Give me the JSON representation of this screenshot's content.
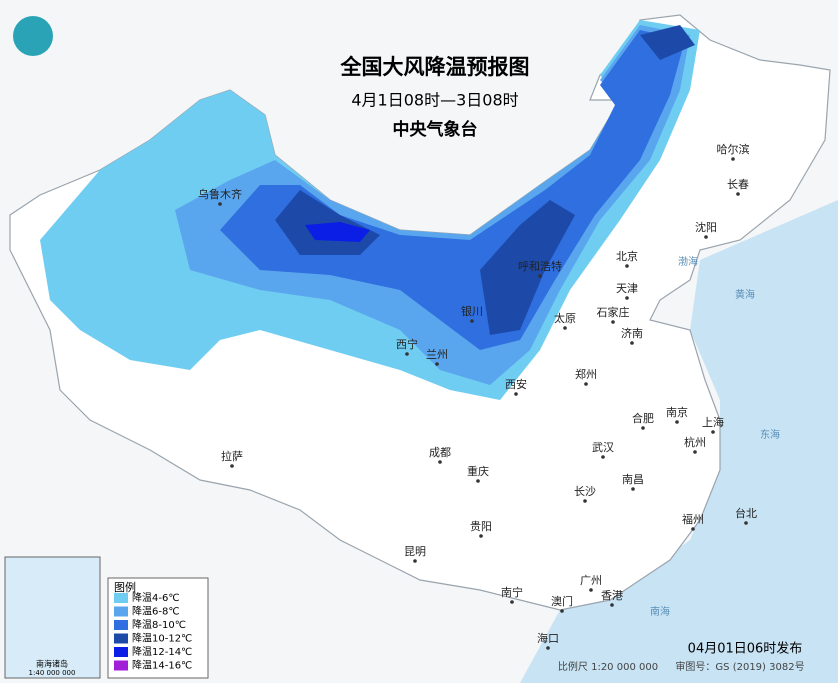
{
  "header": {
    "title": "全国大风降温预报图",
    "subtitle": "4月1日08时—3日08时",
    "issuer": "中央气象台"
  },
  "cities": [
    "乌鲁木齐",
    "哈尔滨",
    "长春",
    "沈阳",
    "呼和浩特",
    "北京",
    "天津",
    "银川",
    "太原",
    "石家庄",
    "济南",
    "西宁",
    "兰州",
    "西安",
    "郑州",
    "合肥",
    "南京",
    "上海",
    "拉萨",
    "成都",
    "武汉",
    "杭州",
    "重庆",
    "南昌",
    "长沙",
    "福州",
    "台北",
    "贵阳",
    "昆明",
    "广州",
    "南宁",
    "澳门",
    "香港",
    "海口"
  ],
  "seas": [
    "渤海",
    "黄海",
    "东海",
    "南海"
  ],
  "legend": {
    "title": "图例",
    "items": [
      {
        "label": "降温4-6℃",
        "color": "#6fcdf2"
      },
      {
        "label": "降温6-8℃",
        "color": "#5aa6ee"
      },
      {
        "label": "降温8-10℃",
        "color": "#2f6fe0"
      },
      {
        "label": "降温10-12℃",
        "color": "#1d4aa8"
      },
      {
        "label": "降温12-14℃",
        "color": "#0a1ee6"
      },
      {
        "label": "降温14-16℃",
        "color": "#a21fd8"
      }
    ]
  },
  "inset": {
    "label": "南海诸岛",
    "scale": "1:40 000 000"
  },
  "footer": {
    "issued": "04月01日06时发布",
    "scale": "比例尺 1:20 000 000",
    "approval": "审图号：GS (2019) 3082号"
  }
}
